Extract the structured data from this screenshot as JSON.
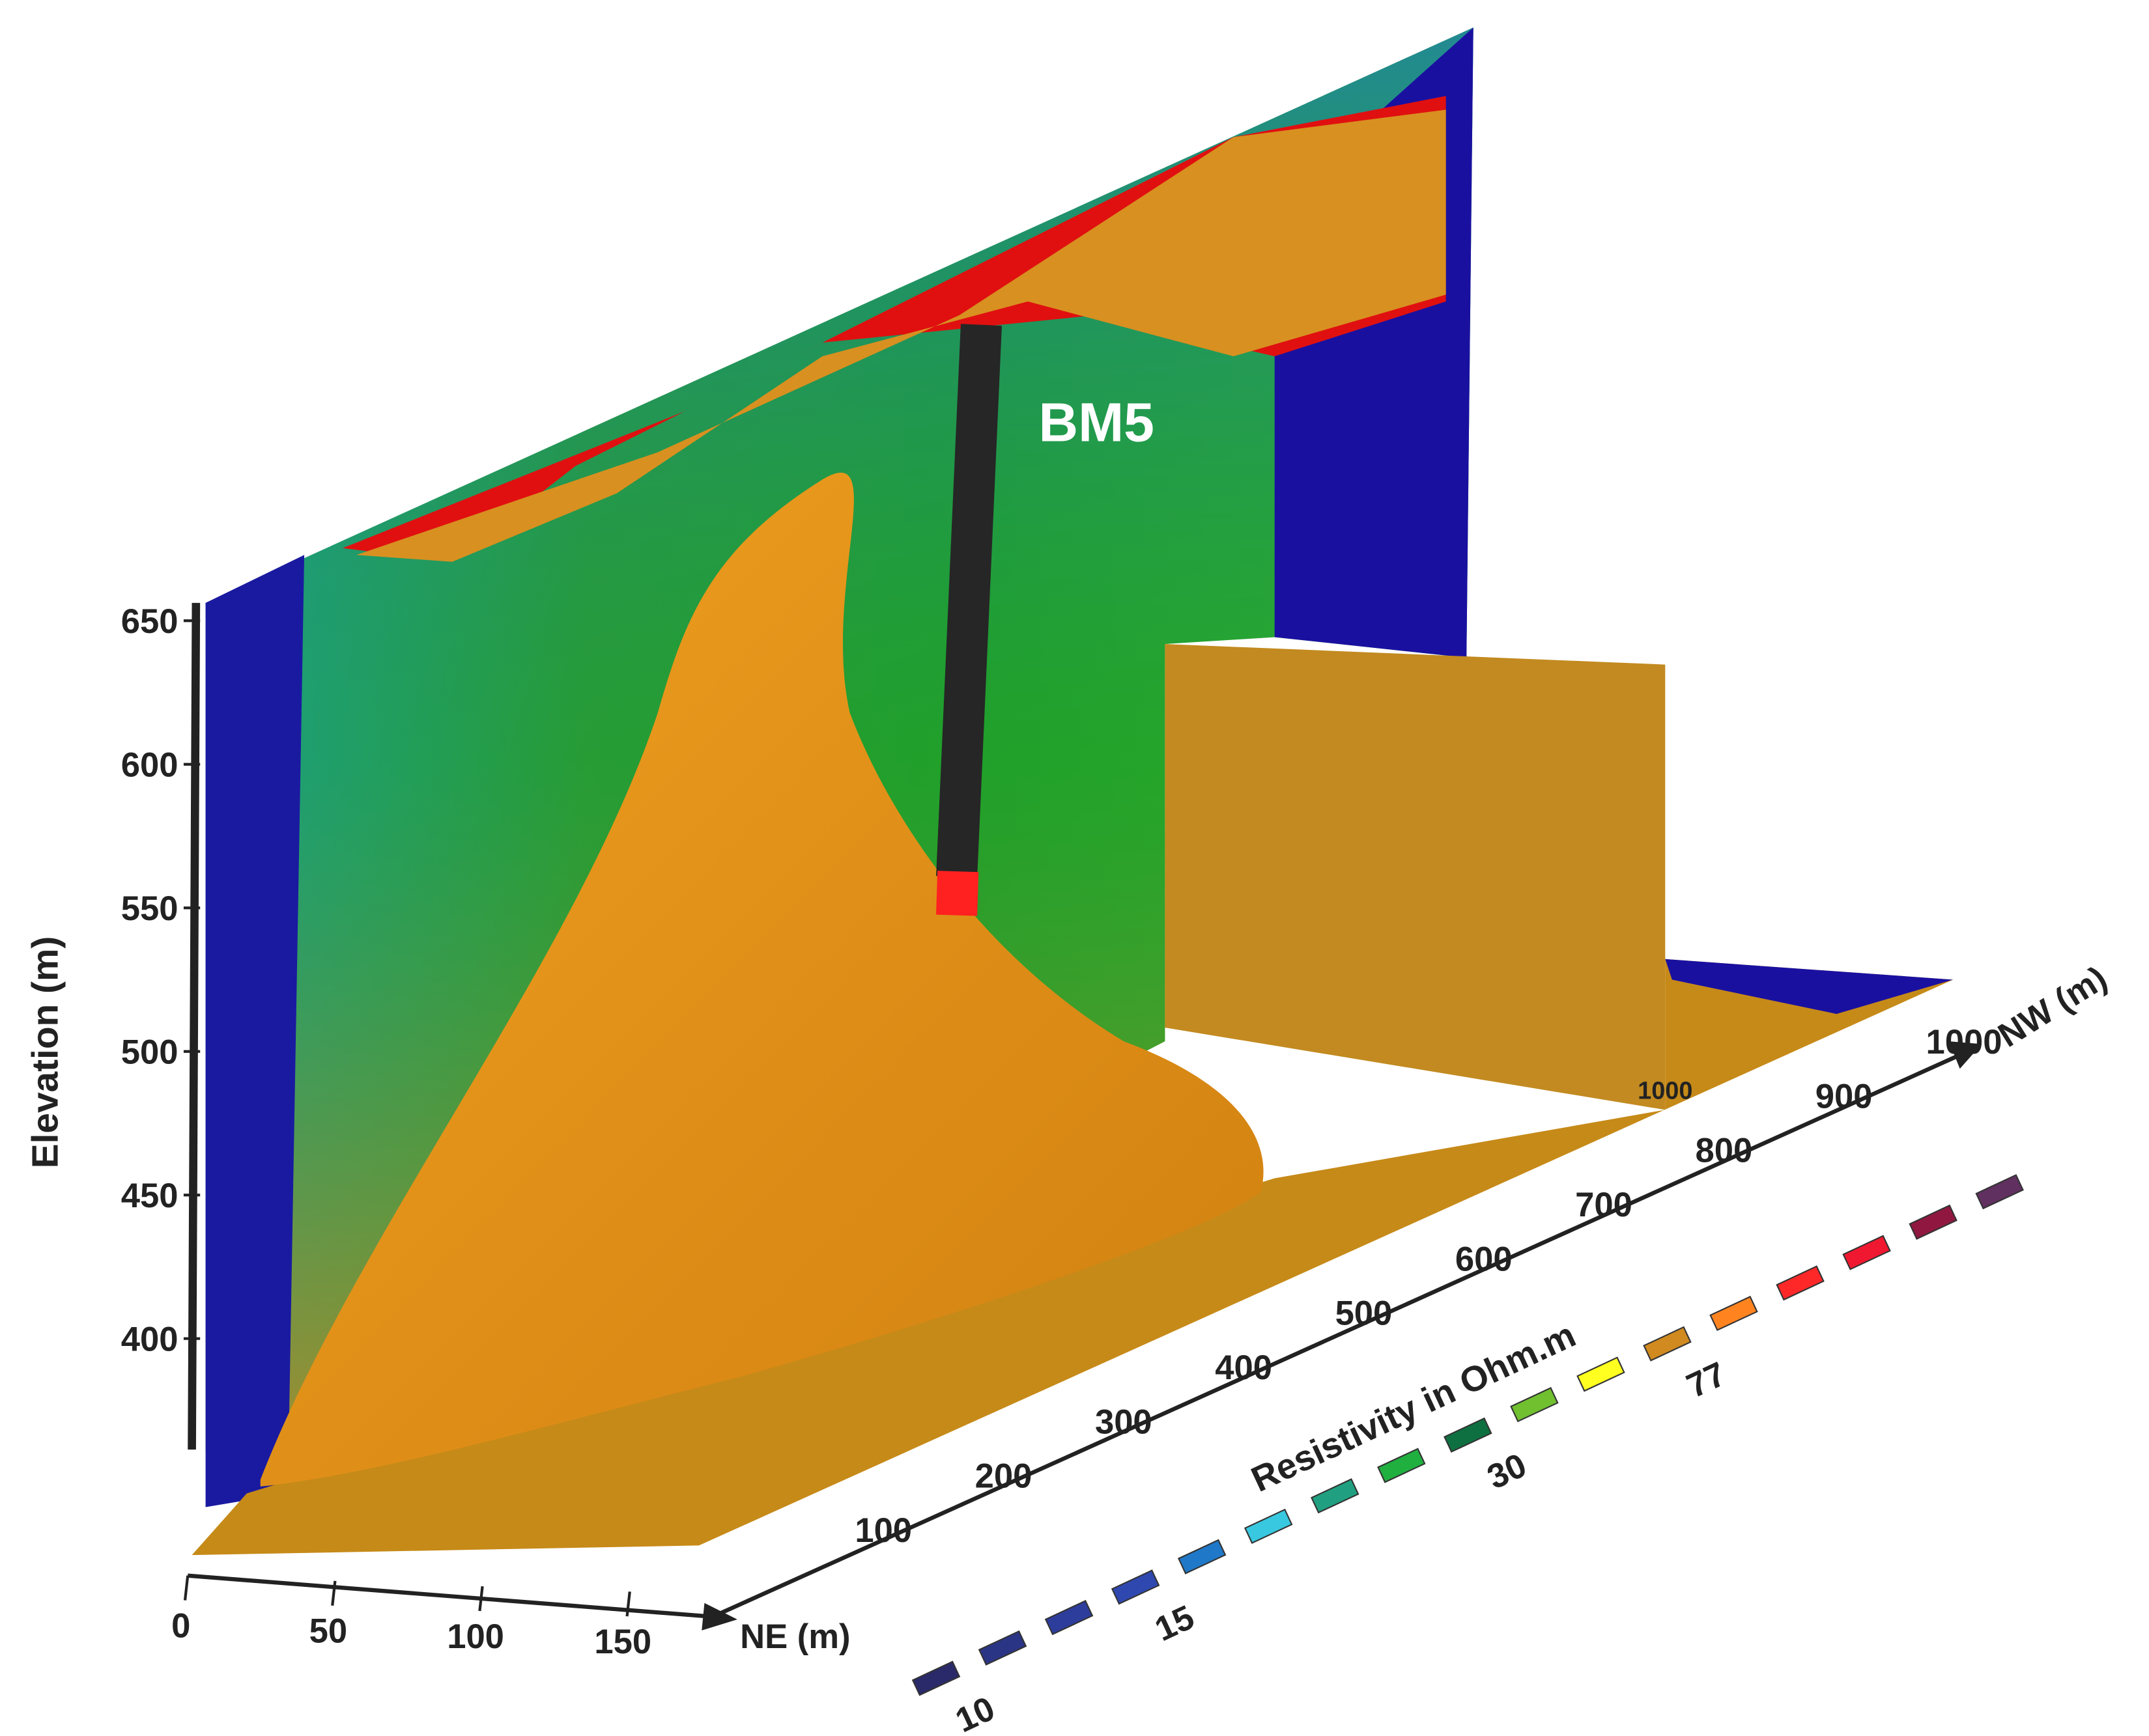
{
  "elevation_axis": {
    "label": "Elevation (m)",
    "ticks": [
      650,
      600,
      550,
      500,
      450,
      400
    ]
  },
  "ne_axis": {
    "label": "NE (m)",
    "ticks": [
      0,
      50,
      100,
      150
    ]
  },
  "nw_axis": {
    "label": "NW (m)",
    "ticks": [
      100,
      200,
      300,
      400,
      500,
      600,
      700,
      800,
      900,
      1000
    ],
    "floor_label": 1000
  },
  "borehole": {
    "label": "BM5"
  },
  "legend": {
    "title": "Resistivity in Ohm.m",
    "colors": [
      "#2a2a6a",
      "#2b3585",
      "#2d3d9c",
      "#2f48b0",
      "#1f78c8",
      "#38c8e0",
      "#20a080",
      "#20b040",
      "#0e7040",
      "#70c030",
      "#ffff20",
      "#d08a20",
      "#ff8420",
      "#ff2828",
      "#f01830",
      "#901840",
      "#603060"
    ],
    "labels": [
      {
        "text": 10,
        "index": 0
      },
      {
        "text": 15,
        "index": 3
      },
      {
        "text": 30,
        "index": 8
      },
      {
        "text": 77,
        "index": 11
      }
    ]
  }
}
